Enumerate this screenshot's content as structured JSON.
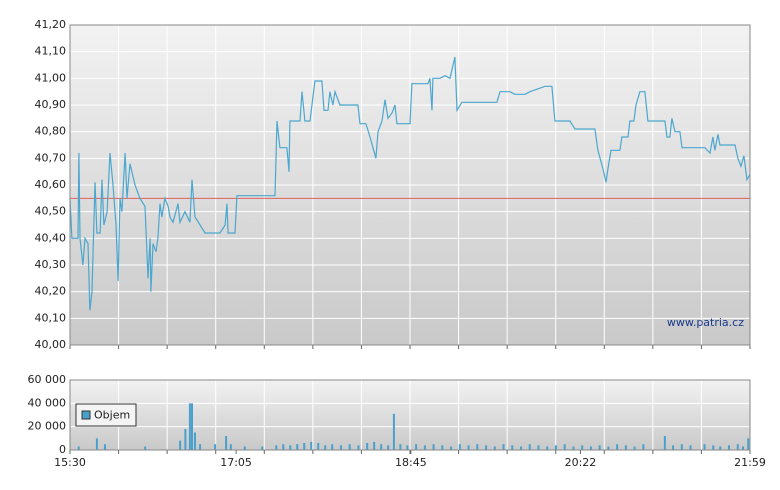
{
  "chart_data": [
    {
      "type": "line",
      "xlim": [
        0,
        389
      ],
      "ylim": [
        40.0,
        41.2
      ],
      "yticks": [
        {
          "value": 40.0,
          "label": "40,00"
        },
        {
          "value": 40.1,
          "label": "40,10"
        },
        {
          "value": 40.2,
          "label": "40,20"
        },
        {
          "value": 40.3,
          "label": "40,30"
        },
        {
          "value": 40.4,
          "label": "40,40"
        },
        {
          "value": 40.5,
          "label": "40,50"
        },
        {
          "value": 40.6,
          "label": "40,60"
        },
        {
          "value": 40.7,
          "label": "40,70"
        },
        {
          "value": 40.8,
          "label": "40,80"
        },
        {
          "value": 40.9,
          "label": "40,90"
        },
        {
          "value": 41.0,
          "label": "41,00"
        },
        {
          "value": 41.1,
          "label": "41,10"
        },
        {
          "value": 41.2,
          "label": "41,20"
        }
      ],
      "grid": true,
      "reference_line": {
        "value": 40.55,
        "color": "#e06060"
      },
      "watermark": "www.patria.cz",
      "x": [
        0,
        1.1,
        4.6,
        5.1,
        5.7,
        7.4,
        8.6,
        10.3,
        11.4,
        12.6,
        14.3,
        15.4,
        17.2,
        18.3,
        19.4,
        21.2,
        22.9,
        24.6,
        26.3,
        27.5,
        28.6,
        29.7,
        31.5,
        32.6,
        34.3,
        37.2,
        40.0,
        42.9,
        44.6,
        45.8,
        46.3,
        47.5,
        49.2,
        50.3,
        51.5,
        52.6,
        54.3,
        56.1,
        57.2,
        58.9,
        61.8,
        62.9,
        65.8,
        68.6,
        69.8,
        71.5,
        74.4,
        77.2,
        85.8,
        88.7,
        89.8,
        90.4,
        94.4,
        95.5,
        117.3,
        118.4,
        120.1,
        124.1,
        125.3,
        125.8,
        131.6,
        132.7,
        134.4,
        137.3,
        140.1,
        144.1,
        145.3,
        147.6,
        148.7,
        150.4,
        151.6,
        154.4,
        164.7,
        165.9,
        169.3,
        171.6,
        175.0,
        176.2,
        178.5,
        180.2,
        181.9,
        184.2,
        185.9,
        187.0,
        194.5,
        195.6,
        204.8,
        205.9,
        207.1,
        207.6,
        211.6,
        214.5,
        217.4,
        220.2,
        221.4,
        224.2,
        244.2,
        246.0,
        251.7,
        254.5,
        260.3,
        263.1,
        271.7,
        275.7,
        277.4,
        286.0,
        288.9,
        300.3,
        302.0,
        304.9,
        306.6,
        307.7,
        309.5,
        314.6,
        315.7,
        319.2,
        320.3,
        322.6,
        323.8,
        326.0,
        328.9,
        330.6,
        340.3,
        341.5,
        343.2,
        344.3,
        346.1,
        348.9,
        350.1,
        363.2,
        366.1,
        367.8,
        368.9,
        370.7,
        371.8,
        380.4,
        382.1,
        383.8,
        385.5,
        387.2,
        389
      ],
      "series": [
        {
          "color": "#4ba7cf",
          "values": [
            40.55,
            40.4,
            40.4,
            40.72,
            40.4,
            40.3,
            40.4,
            40.38,
            40.13,
            40.2,
            40.61,
            40.42,
            40.42,
            40.62,
            40.45,
            40.5,
            40.72,
            40.6,
            40.45,
            40.24,
            40.55,
            40.5,
            40.72,
            40.55,
            40.68,
            40.6,
            40.55,
            40.52,
            40.25,
            40.4,
            40.2,
            40.38,
            40.35,
            40.4,
            40.53,
            40.48,
            40.55,
            40.52,
            40.48,
            40.46,
            40.53,
            40.46,
            40.5,
            40.46,
            40.62,
            40.48,
            40.45,
            40.42,
            40.42,
            40.45,
            40.53,
            40.42,
            40.42,
            40.56,
            40.56,
            40.84,
            40.74,
            40.74,
            40.65,
            40.84,
            40.84,
            40.95,
            40.84,
            40.84,
            40.99,
            40.99,
            40.88,
            40.88,
            40.95,
            40.9,
            40.95,
            40.9,
            40.9,
            40.83,
            40.83,
            40.78,
            40.7,
            40.8,
            40.84,
            40.92,
            40.85,
            40.87,
            40.9,
            40.83,
            40.83,
            40.98,
            40.98,
            41.0,
            40.88,
            41.0,
            41.0,
            41.01,
            41.0,
            41.08,
            40.88,
            40.91,
            40.91,
            40.95,
            40.95,
            40.94,
            40.94,
            40.95,
            40.97,
            40.97,
            40.84,
            40.84,
            40.81,
            40.81,
            40.73,
            40.66,
            40.61,
            40.66,
            40.73,
            40.73,
            40.78,
            40.78,
            40.84,
            40.84,
            40.9,
            40.95,
            40.95,
            40.84,
            40.84,
            40.78,
            40.78,
            40.85,
            40.8,
            40.8,
            40.74,
            40.74,
            40.72,
            40.78,
            40.73,
            40.79,
            40.75,
            40.75,
            40.7,
            40.67,
            40.71,
            40.62,
            40.64
          ]
        }
      ]
    },
    {
      "type": "bar",
      "xlim": [
        0,
        389
      ],
      "xticks": [
        {
          "value": 0,
          "label": "15:30"
        },
        {
          "value": 95,
          "label": "17:05"
        },
        {
          "value": 195,
          "label": "18:45"
        },
        {
          "value": 292,
          "label": "20:22"
        },
        {
          "value": 389,
          "label": "21:59"
        }
      ],
      "ylim": [
        0,
        60000
      ],
      "yticks": [
        {
          "value": 0,
          "label": "0"
        },
        {
          "value": 20000,
          "label": "20 000"
        },
        {
          "value": 40000,
          "label": "40 000"
        },
        {
          "value": 60000,
          "label": "60 000"
        }
      ],
      "grid": true,
      "legend": "upper left",
      "x": [
        5,
        15.4,
        20,
        43,
        63,
        66,
        68.6,
        69.8,
        71.5,
        74.4,
        83,
        89.3,
        92,
        100,
        110,
        118,
        122,
        126,
        130,
        134,
        138,
        142,
        146,
        150,
        155,
        160,
        165,
        170,
        174,
        178,
        182,
        185.3,
        189,
        193,
        198,
        203,
        208,
        213,
        218,
        223,
        228,
        233,
        238,
        243,
        248,
        253,
        258,
        263,
        268,
        273,
        278,
        283,
        288,
        293,
        298,
        303,
        308,
        313,
        318,
        323,
        328,
        340.3,
        345,
        350,
        355,
        363,
        368,
        372,
        377,
        382,
        385,
        388
      ],
      "series": [
        {
          "name": "Objem",
          "color": "#4aa0cc",
          "values": [
            3000,
            10000,
            5000,
            3000,
            8000,
            18000,
            40000,
            40000,
            15000,
            5000,
            5000,
            12000,
            5000,
            3000,
            3000,
            4000,
            5000,
            4000,
            5000,
            6000,
            7000,
            6000,
            4000,
            5000,
            4000,
            5000,
            4000,
            6000,
            7000,
            5000,
            4000,
            31000,
            5000,
            4000,
            5000,
            4000,
            5000,
            4000,
            3000,
            5000,
            4000,
            5000,
            4000,
            3000,
            5000,
            4000,
            3000,
            5000,
            4000,
            3000,
            4000,
            5000,
            3000,
            4000,
            3000,
            4000,
            3000,
            5000,
            4000,
            3000,
            5000,
            12000,
            4000,
            5000,
            4000,
            5000,
            4000,
            3000,
            4000,
            5000,
            3000,
            10000
          ]
        }
      ]
    }
  ]
}
